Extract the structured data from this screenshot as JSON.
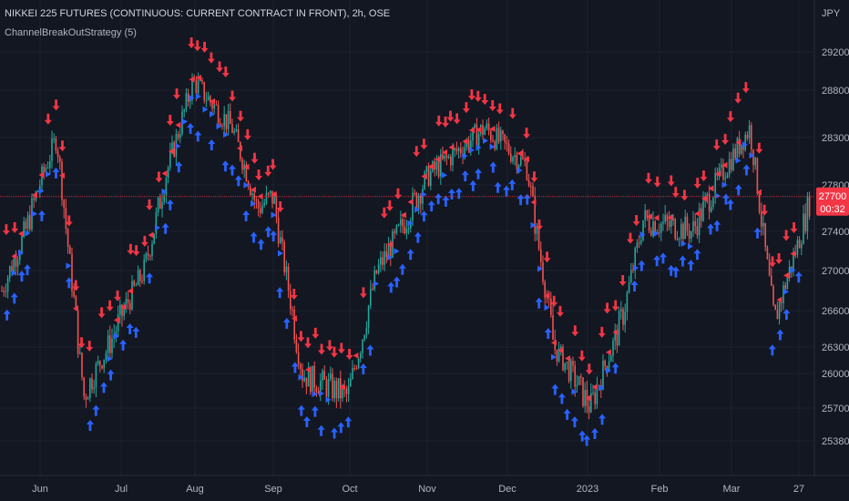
{
  "header": {
    "symbol_title": "NIKKEI 225 FUTURES (CONTINUOUS: CURRENT CONTRACT IN FRONT), 2h, OSE",
    "strategy_label": "ChannelBreakOutStrategy (5)",
    "currency": "JPY"
  },
  "price_badge": {
    "price": "27700",
    "countdown": "00:32",
    "color": "#f23645"
  },
  "colors": {
    "background": "#131722",
    "grid": "#1e222d",
    "up": "#26a69a",
    "down": "#ef5350",
    "long_signal": "#2962ff",
    "short_signal": "#f23645",
    "price_line": "#f23645"
  },
  "chart_data": {
    "type": "candlestick",
    "title": "NIKKEI 225 FUTURES (CONTINUOUS: CURRENT CONTRACT IN FRONT), 2h, OSE",
    "ylabel": "JPY",
    "ylim": [
      25180,
      29480
    ],
    "y_ticks": [
      29200,
      28800,
      28300,
      27800,
      27400,
      27000,
      26600,
      26300,
      26000,
      25700,
      25380
    ],
    "x_ticks": [
      "Jun",
      "Jul",
      "Aug",
      "Sep",
      "Oct",
      "Nov",
      "Dec",
      "2023",
      "Feb",
      "Mar",
      "27"
    ],
    "last_price": 27700,
    "price_series_approx": [
      {
        "x": "May (start)",
        "y": 26800
      },
      {
        "x": "late May",
        "y": 27400
      },
      {
        "x": "early Jun",
        "y": 28300
      },
      {
        "x": "mid Jun",
        "y": 25800
      },
      {
        "x": "Jul",
        "y": 26500
      },
      {
        "x": "mid Jul",
        "y": 27000
      },
      {
        "x": "late Jul",
        "y": 27900
      },
      {
        "x": "mid Aug",
        "y": 28900
      },
      {
        "x": "late Aug",
        "y": 28400
      },
      {
        "x": "early Sep",
        "y": 27600
      },
      {
        "x": "mid Sep",
        "y": 27700
      },
      {
        "x": "late Sep",
        "y": 26000
      },
      {
        "x": "early Oct",
        "y": 25800
      },
      {
        "x": "Oct",
        "y": 27000
      },
      {
        "x": "Nov",
        "y": 27900
      },
      {
        "x": "late Nov",
        "y": 28400
      },
      {
        "x": "Dec",
        "y": 28000
      },
      {
        "x": "late Dec",
        "y": 26300
      },
      {
        "x": "2023",
        "y": 25700
      },
      {
        "x": "mid Jan",
        "y": 26600
      },
      {
        "x": "Feb",
        "y": 27500
      },
      {
        "x": "late Feb",
        "y": 27400
      },
      {
        "x": "early Mar",
        "y": 28400
      },
      {
        "x": "mid Mar",
        "y": 26500
      },
      {
        "x": "27",
        "y": 27700
      }
    ]
  }
}
